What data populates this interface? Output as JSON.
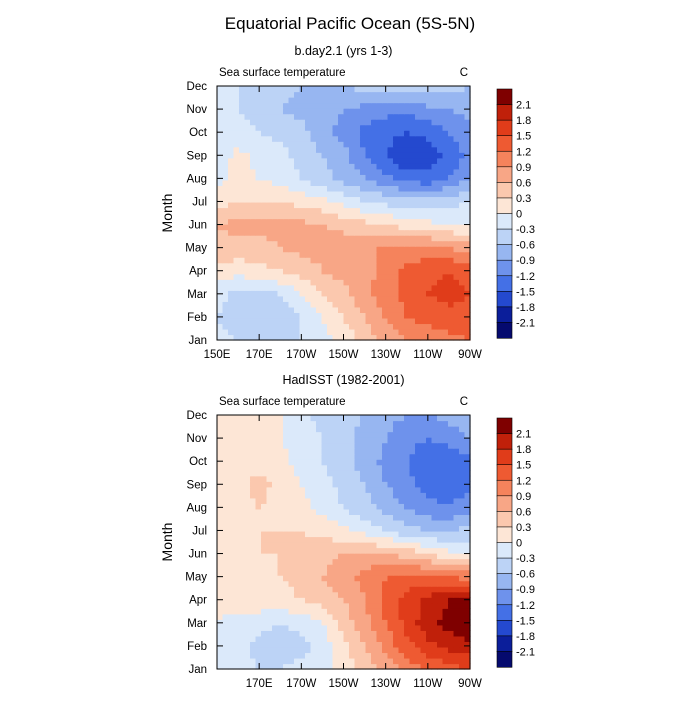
{
  "title": "Equatorial Pacific Ocean (5S-5N)",
  "colorbar": {
    "levels": [
      "2.1",
      "1.8",
      "1.5",
      "1.2",
      "0.9",
      "0.6",
      "0.3",
      "0",
      "-0.3",
      "-0.6",
      "-0.9",
      "-1.2",
      "-1.5",
      "-1.8",
      "-2.1"
    ],
    "colors": [
      "#7f0000",
      "#c0200a",
      "#e03c1a",
      "#ee5a32",
      "#f5835c",
      "#f8a686",
      "#fbc8ae",
      "#fde6d6",
      "#dbe9fa",
      "#bcd3f6",
      "#97b6f1",
      "#6e92ec",
      "#4470e6",
      "#2449cf",
      "#0b1e9a",
      "#050a6e"
    ]
  },
  "chart_data": [
    {
      "type": "heatmap",
      "subtitle": "b.day2.1 (yrs 1-3)",
      "left_label": "Sea surface temperature",
      "right_label": "C",
      "xlabel": "",
      "ylabel": "Month",
      "x": [
        150,
        160,
        170,
        180,
        190,
        200,
        210,
        220,
        230,
        240,
        250,
        260,
        270
      ],
      "x_tick_labels": [
        "150E",
        "170E",
        "170W",
        "150W",
        "130W",
        "110W",
        "90W"
      ],
      "y_tick_labels": [
        "Jan",
        "Feb",
        "Mar",
        "Apr",
        "May",
        "Jun",
        "Jul",
        "Aug",
        "Sep",
        "Oct",
        "Nov",
        "Dec"
      ],
      "z": [
        [
          -0.2,
          -0.3,
          -0.4,
          -0.4,
          -0.3,
          -0.1,
          0.1,
          0.4,
          0.7,
          0.9,
          1.0,
          1.1,
          1.2
        ],
        [
          -0.3,
          -0.5,
          -0.5,
          -0.5,
          -0.3,
          0.0,
          0.3,
          0.6,
          0.9,
          1.2,
          1.3,
          1.4,
          1.4
        ],
        [
          -0.2,
          -0.4,
          -0.4,
          -0.3,
          0.0,
          0.3,
          0.5,
          0.8,
          1.1,
          1.3,
          1.5,
          1.6,
          1.5
        ],
        [
          0.2,
          0.1,
          0.2,
          0.3,
          0.4,
          0.6,
          0.7,
          0.8,
          1.0,
          1.3,
          1.4,
          1.5,
          1.4
        ],
        [
          0.5,
          0.5,
          0.5,
          0.6,
          0.7,
          0.7,
          0.8,
          0.9,
          0.9,
          1.0,
          1.0,
          0.9,
          0.8
        ],
        [
          0.6,
          0.7,
          0.7,
          0.7,
          0.7,
          0.6,
          0.5,
          0.4,
          0.3,
          0.2,
          0.1,
          0.0,
          0.0
        ],
        [
          0.2,
          0.3,
          0.3,
          0.3,
          0.2,
          0.1,
          -0.1,
          -0.3,
          -0.4,
          -0.5,
          -0.5,
          -0.4,
          -0.3
        ],
        [
          -0.1,
          0.1,
          0.0,
          -0.1,
          -0.3,
          -0.5,
          -0.7,
          -0.9,
          -1.1,
          -1.3,
          -1.4,
          -1.2,
          -0.9
        ],
        [
          -0.2,
          0.1,
          -0.1,
          -0.2,
          -0.4,
          -0.6,
          -0.8,
          -1.2,
          -1.5,
          -1.8,
          -1.7,
          -1.4,
          -1.1
        ],
        [
          -0.2,
          -0.2,
          -0.3,
          -0.4,
          -0.5,
          -0.8,
          -1.0,
          -1.3,
          -1.4,
          -1.5,
          -1.4,
          -1.2,
          -1.0
        ],
        [
          -0.2,
          -0.3,
          -0.4,
          -0.6,
          -0.7,
          -0.8,
          -0.9,
          -1.0,
          -1.1,
          -1.1,
          -1.0,
          -0.9,
          -0.8
        ],
        [
          -0.2,
          -0.3,
          -0.4,
          -0.5,
          -0.6,
          -0.6,
          -0.6,
          -0.5,
          -0.4,
          -0.4,
          -0.4,
          -0.5,
          -0.6
        ]
      ],
      "zlim": [
        -2.1,
        2.1
      ]
    },
    {
      "type": "heatmap",
      "subtitle": "HadISST (1982-2001)",
      "left_label": "Sea surface temperature",
      "right_label": "C",
      "xlabel": "",
      "ylabel": "Month",
      "x": [
        150,
        160,
        170,
        180,
        190,
        200,
        210,
        220,
        230,
        240,
        250,
        260,
        270
      ],
      "x_tick_labels": [
        "170E",
        "170W",
        "150W",
        "130W",
        "110W",
        "90W"
      ],
      "y_tick_labels": [
        "Jan",
        "Feb",
        "Mar",
        "Apr",
        "May",
        "Jun",
        "Jul",
        "Aug",
        "Sep",
        "Oct",
        "Nov",
        "Dec"
      ],
      "z": [
        [
          -0.1,
          -0.2,
          -0.3,
          -0.3,
          -0.2,
          -0.1,
          0.1,
          0.4,
          0.7,
          1.0,
          1.2,
          1.4,
          1.5
        ],
        [
          -0.1,
          -0.2,
          -0.4,
          -0.5,
          -0.4,
          -0.2,
          0.2,
          0.6,
          1.0,
          1.4,
          1.7,
          1.9,
          2.0
        ],
        [
          0.0,
          -0.1,
          -0.2,
          -0.3,
          -0.2,
          0.0,
          0.4,
          0.8,
          1.2,
          1.6,
          2.0,
          2.2,
          2.4
        ],
        [
          0.1,
          0.1,
          0.2,
          0.2,
          0.3,
          0.4,
          0.6,
          0.9,
          1.3,
          1.6,
          1.9,
          2.1,
          2.2
        ],
        [
          0.2,
          0.2,
          0.2,
          0.3,
          0.4,
          0.6,
          0.8,
          1.0,
          1.2,
          1.3,
          1.3,
          1.2,
          1.1
        ],
        [
          0.2,
          0.2,
          0.3,
          0.3,
          0.4,
          0.5,
          0.6,
          0.7,
          0.6,
          0.5,
          0.3,
          0.1,
          0.0
        ],
        [
          0.2,
          0.2,
          0.3,
          0.3,
          0.3,
          0.2,
          0.1,
          -0.1,
          -0.3,
          -0.5,
          -0.6,
          -0.6,
          -0.5
        ],
        [
          0.1,
          0.2,
          0.3,
          0.2,
          0.1,
          -0.1,
          -0.3,
          -0.5,
          -0.7,
          -0.9,
          -1.1,
          -1.2,
          -1.0
        ],
        [
          0.1,
          0.2,
          0.4,
          0.2,
          0.0,
          -0.2,
          -0.4,
          -0.6,
          -0.9,
          -1.1,
          -1.3,
          -1.4,
          -1.3
        ],
        [
          0.1,
          0.2,
          0.2,
          0.1,
          -0.1,
          -0.3,
          -0.5,
          -0.7,
          -1.0,
          -1.2,
          -1.4,
          -1.4,
          -1.3
        ],
        [
          0.1,
          0.2,
          0.1,
          0.0,
          -0.1,
          -0.3,
          -0.5,
          -0.7,
          -0.9,
          -1.1,
          -1.2,
          -1.1,
          -0.9
        ],
        [
          0.2,
          0.2,
          0.1,
          0.0,
          -0.2,
          -0.4,
          -0.5,
          -0.6,
          -0.8,
          -0.9,
          -0.9,
          -0.8,
          -0.7
        ]
      ],
      "zlim": [
        -2.1,
        2.1
      ]
    }
  ]
}
